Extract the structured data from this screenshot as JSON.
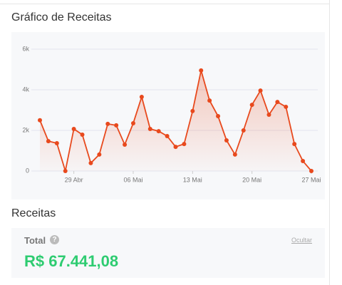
{
  "header": {
    "title": "Gráfico de Receitas"
  },
  "chart_data": {
    "type": "line",
    "categories": [
      null,
      null,
      null,
      null,
      "29 Abr",
      null,
      null,
      null,
      null,
      null,
      null,
      "06 Mai",
      null,
      null,
      null,
      null,
      null,
      null,
      "13 Mai",
      null,
      null,
      null,
      null,
      null,
      null,
      "20 Mai",
      null,
      null,
      null,
      null,
      null,
      null,
      "27 Mai"
    ],
    "series": [
      {
        "name": "Receitas",
        "color": "#e8491d",
        "values": [
          2500,
          1470,
          1370,
          0,
          2070,
          1790,
          390,
          810,
          2320,
          2250,
          1300,
          2350,
          3650,
          2070,
          1960,
          1720,
          1190,
          1330,
          2950,
          4950,
          3470,
          2700,
          1510,
          810,
          2000,
          3260,
          3960,
          2770,
          3400,
          3160,
          1330,
          490,
          0
        ]
      }
    ],
    "ylim": [
      0,
      6000
    ],
    "yticks": [
      0,
      {
        "value": 2000,
        "label": "2k"
      },
      {
        "value": 4000,
        "label": "4k"
      },
      {
        "value": 6000,
        "label": "6k"
      }
    ],
    "grid": true
  },
  "summary": {
    "title": "Receitas",
    "label": "Total",
    "action": "Ocultar",
    "total": "R$ 67.441,08"
  }
}
